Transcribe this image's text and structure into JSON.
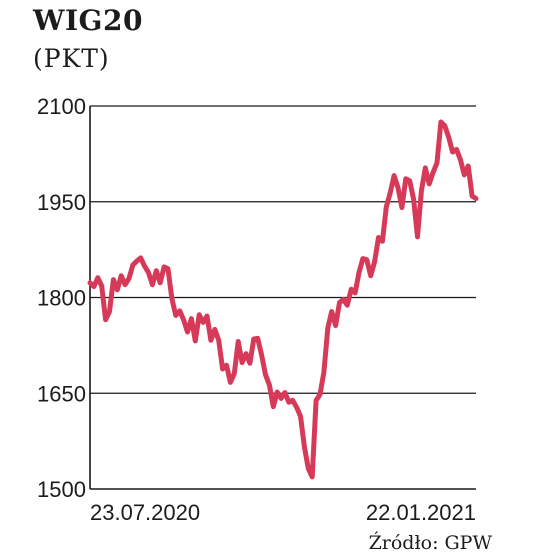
{
  "header": {
    "title": "WIG20",
    "unit": "(PKT)"
  },
  "footer": {
    "source": "Źródło: GPW"
  },
  "colors": {
    "series": "#d73a58",
    "axis": "#1a1a1a",
    "grid": "#1a1a1a",
    "text": "#1c1c1c"
  },
  "chart_data": {
    "type": "line",
    "title": "WIG20",
    "ylabel": "(PKT)",
    "ylim": [
      1500,
      2100
    ],
    "yticks": [
      "1500",
      "1650",
      "1800",
      "1950",
      "2100"
    ],
    "xticks": [
      "23.07.2020",
      "22.01.2021"
    ],
    "grid": "horizontal",
    "series": [
      {
        "values": [
          1823,
          1817,
          1831,
          1818,
          1765,
          1778,
          1828,
          1812,
          1834,
          1820,
          1830,
          1851,
          1857,
          1862,
          1849,
          1839,
          1820,
          1842,
          1823,
          1848,
          1845,
          1798,
          1772,
          1779,
          1765,
          1746,
          1767,
          1732,
          1773,
          1761,
          1771,
          1733,
          1750,
          1733,
          1688,
          1694,
          1667,
          1681,
          1731,
          1698,
          1712,
          1697,
          1735,
          1736,
          1710,
          1679,
          1663,
          1629,
          1652,
          1642,
          1651,
          1636,
          1639,
          1628,
          1614,
          1566,
          1532,
          1519,
          1639,
          1648,
          1683,
          1752,
          1778,
          1756,
          1792,
          1797,
          1788,
          1813,
          1807,
          1839,
          1861,
          1859,
          1834,
          1856,
          1894,
          1888,
          1942,
          1964,
          1991,
          1972,
          1941,
          1986,
          1983,
          1954,
          1895,
          1967,
          2003,
          1978,
          1996,
          2011,
          2075,
          2069,
          2051,
          2028,
          2032,
          2016,
          1992,
          2006,
          1959,
          1955
        ]
      }
    ]
  }
}
